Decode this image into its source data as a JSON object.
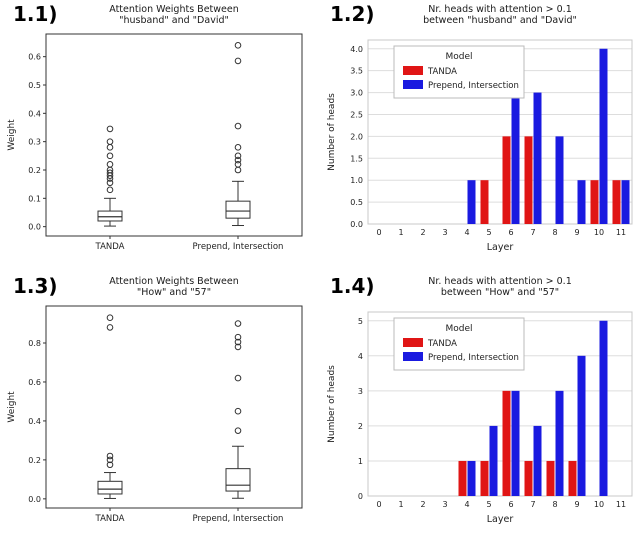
{
  "figure": {
    "background": "#ffffff"
  },
  "colors": {
    "tanda": "#e01515",
    "prepend": "#1a1ae0",
    "box_edge": "#333333",
    "bar_axis": "#c8c8c8",
    "grid": "#dddddd",
    "text": "#222222"
  },
  "chart_data": [
    {
      "id": "1.1",
      "figure_label": "1.1)",
      "type": "box",
      "title_lines": [
        "Attention Weights Between",
        "\"husband\" and \"David\""
      ],
      "ylabel": "Weight",
      "ylim": [
        -0.033,
        0.68
      ],
      "yticks": [
        "0.0",
        "0.1",
        "0.2",
        "0.3",
        "0.4",
        "0.5",
        "0.6"
      ],
      "ytick_values": [
        0.0,
        0.1,
        0.2,
        0.3,
        0.4,
        0.5,
        0.6
      ],
      "categories": [
        "TANDA",
        "Prepend, Intersection"
      ],
      "grid": false,
      "boxes": [
        {
          "whisker_low": 0.002,
          "q1": 0.02,
          "median": 0.035,
          "q3": 0.055,
          "whisker_high": 0.1,
          "outliers": [
            0.13,
            0.155,
            0.17,
            0.18,
            0.19,
            0.2,
            0.22,
            0.25,
            0.28,
            0.3,
            0.345
          ]
        },
        {
          "whisker_low": 0.004,
          "q1": 0.03,
          "median": 0.055,
          "q3": 0.09,
          "whisker_high": 0.16,
          "outliers": [
            0.2,
            0.22,
            0.235,
            0.25,
            0.28,
            0.355,
            0.585,
            0.64
          ]
        }
      ]
    },
    {
      "id": "1.2",
      "figure_label": "1.2)",
      "type": "bar",
      "title_lines": [
        "Nr. heads with attention > 0.1",
        "between \"husband\" and \"David\""
      ],
      "xlabel": "Layer",
      "ylabel": "Number of heads",
      "ylim": [
        0,
        4.2
      ],
      "yticks": [
        "0.0",
        "0.5",
        "1.0",
        "1.5",
        "2.0",
        "2.5",
        "3.0",
        "3.5",
        "4.0"
      ],
      "ytick_values": [
        0,
        0.5,
        1.0,
        1.5,
        2.0,
        2.5,
        3.0,
        3.5,
        4.0
      ],
      "categories": [
        "0",
        "1",
        "2",
        "3",
        "4",
        "5",
        "6",
        "7",
        "8",
        "9",
        "10",
        "11"
      ],
      "legend_title": "Model",
      "grid": true,
      "series": [
        {
          "name": "TANDA",
          "color_key": "tanda",
          "values": [
            0,
            0,
            0,
            0,
            0,
            1,
            2,
            2,
            0,
            0,
            1,
            1
          ]
        },
        {
          "name": "Prepend, Intersection",
          "color_key": "prepend",
          "values": [
            0,
            0,
            0,
            0,
            1,
            0,
            3,
            3,
            2,
            1,
            4,
            1
          ]
        }
      ]
    },
    {
      "id": "1.3",
      "figure_label": "1.3)",
      "type": "box",
      "title_lines": [
        "Attention Weights Between",
        "\"How\" and \"57\""
      ],
      "ylabel": "Weight",
      "ylim": [
        -0.047,
        0.99
      ],
      "yticks": [
        "0.0",
        "0.2",
        "0.4",
        "0.6",
        "0.8"
      ],
      "ytick_values": [
        0.0,
        0.2,
        0.4,
        0.6,
        0.8
      ],
      "categories": [
        "TANDA",
        "Prepend, Intersection"
      ],
      "grid": false,
      "boxes": [
        {
          "whisker_low": 0.002,
          "q1": 0.025,
          "median": 0.05,
          "q3": 0.09,
          "whisker_high": 0.135,
          "outliers": [
            0.175,
            0.2,
            0.22,
            0.88,
            0.93
          ]
        },
        {
          "whisker_low": 0.003,
          "q1": 0.04,
          "median": 0.07,
          "q3": 0.155,
          "whisker_high": 0.27,
          "outliers": [
            0.35,
            0.45,
            0.62,
            0.78,
            0.805,
            0.83,
            0.9
          ]
        }
      ]
    },
    {
      "id": "1.4",
      "figure_label": "1.4)",
      "type": "bar",
      "title_lines": [
        "Nr. heads with attention > 0.1",
        "between \"How\" and \"57\""
      ],
      "xlabel": "Layer",
      "ylabel": "Number of heads",
      "ylim": [
        0,
        5.25
      ],
      "yticks": [
        "0",
        "1",
        "2",
        "3",
        "4",
        "5"
      ],
      "ytick_values": [
        0,
        1,
        2,
        3,
        4,
        5
      ],
      "categories": [
        "0",
        "1",
        "2",
        "3",
        "4",
        "5",
        "6",
        "7",
        "8",
        "9",
        "10",
        "11"
      ],
      "legend_title": "Model",
      "grid": true,
      "series": [
        {
          "name": "TANDA",
          "color_key": "tanda",
          "values": [
            0,
            0,
            0,
            0,
            1,
            1,
            3,
            1,
            1,
            1,
            0,
            0
          ]
        },
        {
          "name": "Prepend, Intersection",
          "color_key": "prepend",
          "values": [
            0,
            0,
            0,
            0,
            1,
            2,
            3,
            2,
            3,
            4,
            5,
            0
          ]
        }
      ]
    }
  ]
}
